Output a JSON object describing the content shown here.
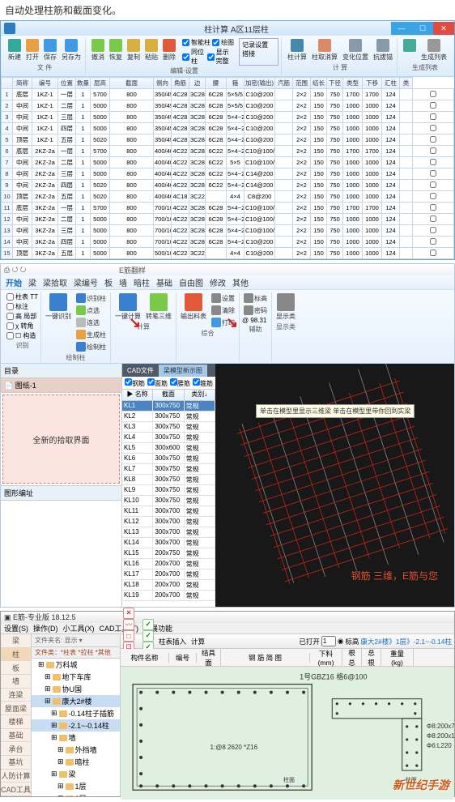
{
  "caption": "自动处理柱筋和截面变化。",
  "win1": {
    "title": "柱计算 A区11层柱",
    "winbtns": {
      "min": "—",
      "max": "☐",
      "close": "✕"
    },
    "ribbon": {
      "groups": [
        {
          "label": "文 件",
          "btns": [
            {
              "lb": "新建",
              "c": "#3a9"
            },
            {
              "lb": "打开",
              "c": "#e8a040"
            },
            {
              "lb": "保存",
              "c": "#4398e6"
            },
            {
              "lb": "另存为",
              "c": "#4398e6"
            }
          ]
        },
        {
          "label": "编辑-设置",
          "btns": [
            {
              "lb": "撤消",
              "c": "#7aca4a"
            },
            {
              "lb": "恢复",
              "c": "#7aca4a"
            },
            {
              "lb": "复制",
              "c": "#d8b040"
            },
            {
              "lb": "粘贴",
              "c": "#d8b040"
            },
            {
              "lb": "删除",
              "c": "#e05a3a"
            }
          ],
          "checks": [
            [
              "智能柱",
              "绘图"
            ],
            [
              "同位柱",
              "显示完整"
            ]
          ],
          "box": "记录设置 搭接"
        },
        {
          "label": "计 算",
          "btns": [
            {
              "lb": "柱计算",
              "c": "#48a"
            },
            {
              "lb": "柱取消算",
              "c": "#d86"
            },
            {
              "lb": "变化位置",
              "c": "#89a"
            },
            {
              "lb": "抗拔锚",
              "c": "#89a"
            }
          ]
        },
        {
          "label": "生成列表",
          "btns": [
            {
              "lb": "",
              "c": "#4a9"
            },
            {
              "lb": "生成列表",
              "c": "#999"
            }
          ]
        }
      ]
    },
    "grid": {
      "headers": [
        "",
        "简称",
        "编号",
        "位置",
        "数量",
        "层高",
        "截面",
        "侧向",
        "角筋",
        "边",
        "腰",
        "箍",
        "加密(输出)",
        "汽筋",
        "范围",
        "结长",
        "下径",
        "类型",
        "下移",
        "汇柱",
        "类"
      ],
      "widths": [
        14,
        24,
        32,
        22,
        18,
        24,
        54,
        22,
        22,
        20,
        26,
        22,
        38,
        22,
        22,
        20,
        20,
        24,
        24,
        22,
        16
      ],
      "rows": [
        [
          "1",
          "底层",
          "1KZ-1",
          "一层",
          "1",
          "5700",
          "800",
          "350/450×100/700",
          "4C28",
          "3C28",
          "6C28",
          "5×5/5",
          "C10@200",
          "",
          "2×2",
          "150",
          "750",
          "1700",
          "1700",
          "124",
          ""
        ],
        [
          "2",
          "中间",
          "1KZ-1",
          "二层",
          "1",
          "5000",
          "800",
          "350/450×100/700",
          "4C28",
          "3C28",
          "6C28",
          "5×5/5",
          "C10@200",
          "",
          "2×2",
          "150",
          "750",
          "1000",
          "1000",
          "124",
          ""
        ],
        [
          "3",
          "中间",
          "1KZ-1",
          "三层",
          "1",
          "5000",
          "800",
          "350/450×100/700",
          "4C28",
          "3C28",
          "6C28",
          "5×4−2/5",
          "C10@200",
          "",
          "2×2",
          "150",
          "750",
          "1000",
          "1000",
          "124",
          ""
        ],
        [
          "4",
          "中间",
          "1KZ-1",
          "四层",
          "1",
          "5000",
          "800",
          "350/450×100/700",
          "4C28",
          "3C28",
          "6C28",
          "5×4−2/5",
          "C10@200",
          "",
          "2×2",
          "150",
          "750",
          "1000",
          "1000",
          "124",
          ""
        ],
        [
          "5",
          "顶层",
          "1KZ-1",
          "五层",
          "1",
          "5020",
          "800",
          "350/450×100/700",
          "4C28",
          "3C28",
          "6C28",
          "5×4−2/5",
          "C10@200",
          "",
          "2×2",
          "150",
          "750",
          "1000",
          "1000",
          "124",
          ""
        ],
        [
          "6",
          "底层",
          "2KZ-2a",
          "一层",
          "1",
          "5700",
          "800",
          "400/400×100/500",
          "4C22",
          "3C28",
          "6C22",
          "5×4−2/5",
          "C10@100/200",
          "",
          "2×2",
          "150",
          "750",
          "1700",
          "1700",
          "124",
          ""
        ],
        [
          "7",
          "中间",
          "2KZ-2a",
          "二层",
          "1",
          "5000",
          "800",
          "400/400×100/500",
          "4C22",
          "3C28",
          "6C22",
          "5×5",
          "C10@100/200",
          "",
          "2×2",
          "150",
          "750",
          "1000",
          "1000",
          "124",
          ""
        ],
        [
          "8",
          "中间",
          "2KZ-2a",
          "三层",
          "1",
          "5000",
          "800",
          "400/400×100/500",
          "4C22",
          "3C28",
          "6C22",
          "5×4−2/5",
          "C14@200",
          "",
          "2×2",
          "150",
          "750",
          "1000",
          "1000",
          "124",
          ""
        ],
        [
          "9",
          "中间",
          "2KZ-2a",
          "四层",
          "1",
          "5020",
          "800",
          "400/400×100/500",
          "4C22",
          "3C28",
          "6C22",
          "5×4−2/5",
          "C14@200",
          "",
          "2×2",
          "150",
          "750",
          "1000",
          "1000",
          "124",
          ""
        ],
        [
          "10",
          "顶层",
          "2KZ-2a",
          "五层",
          "1",
          "5020",
          "800",
          "400/400×100/500",
          "4C18",
          "3C22",
          "",
          "4×4",
          "C8@200",
          "",
          "2×2",
          "150",
          "750",
          "1000",
          "1000",
          "124",
          ""
        ],
        [
          "11",
          "底层",
          "3KZ-2a",
          "一层",
          "1",
          "5700",
          "800",
          "700/100×100/700",
          "4C22",
          "3C28",
          "6C28",
          "5×4−2/5",
          "C10@100/200",
          "",
          "2×2",
          "150",
          "750",
          "1700",
          "1700",
          "124",
          ""
        ],
        [
          "12",
          "中间",
          "3KZ-2a",
          "二层",
          "1",
          "5000",
          "800",
          "700/100×100/700",
          "4C22",
          "3C28",
          "6C28",
          "5×4−2/5",
          "C10@100/200",
          "",
          "2×2",
          "150",
          "750",
          "1000",
          "1000",
          "124",
          ""
        ],
        [
          "13",
          "中间",
          "3KZ-2a",
          "三层",
          "1",
          "5000",
          "800",
          "700/100×100/700",
          "4C22",
          "3C28",
          "6C28",
          "5×4−2/5",
          "C10@100/200",
          "",
          "2×2",
          "150",
          "750",
          "1000",
          "1000",
          "124",
          ""
        ],
        [
          "14",
          "中间",
          "3KZ-2a",
          "四层",
          "1",
          "5000",
          "800",
          "700/100×100/700",
          "4C22",
          "3C28",
          "6C28",
          "5×4−2/5",
          "C10@200",
          "",
          "2×2",
          "150",
          "750",
          "1000",
          "1000",
          "124",
          ""
        ],
        [
          "15",
          "顶层",
          "3KZ-2a",
          "五层",
          "1",
          "5000",
          "800",
          "500/100×100/700",
          "4C22",
          "3C22",
          "",
          "4×4",
          "C10@200",
          "",
          "2×2",
          "150",
          "750",
          "1000",
          "1000",
          "124",
          ""
        ]
      ]
    }
  },
  "win2": {
    "title": "E筋翻样",
    "menus": [
      "开始",
      "梁",
      "梁拾取",
      "梁编号",
      "板",
      "墙",
      "暗柱",
      "基础",
      "自由图",
      "修改",
      "其他"
    ],
    "active_menu": 0,
    "ribbon": {
      "g1": {
        "label": "识别",
        "items": [
          "柱表 TT",
          "标注",
          "高 局部",
          "χ 转角",
          "☐ 构造"
        ]
      },
      "g2": {
        "label": "绘制柱",
        "big": [
          {
            "lb": "一键识别",
            "c": "#3a80d0"
          }
        ],
        "small": [
          {
            "lb": "识别柱",
            "c": "#3a80d0"
          },
          {
            "lb": "点选",
            "c": "#7aca4a"
          },
          {
            "lb": "连选",
            "c": "#bbb"
          },
          {
            "lb": "生成柱",
            "c": "#e8a040"
          },
          {
            "lb": "绘制柱",
            "c": "#3a80d0"
          }
        ]
      },
      "g3": {
        "label": "计算",
        "big": [
          {
            "lb": "一键计算",
            "c": "#3a80d0"
          },
          {
            "lb": "转笔三维",
            "c": "#7aca4a"
          }
        ]
      },
      "g4": {
        "label": "综合",
        "big": [
          {
            "lb": "输出料表",
            "c": "#e05a3a"
          }
        ],
        "small": [
          {
            "lb": "设置",
            "c": "#888"
          },
          {
            "lb": "清除",
            "c": "#888"
          },
          {
            "lb": "打印",
            "c": "#4398e6"
          }
        ]
      },
      "g5": {
        "label": "辅助",
        "small": [
          {
            "lb": "标高",
            "c": "#888"
          },
          {
            "lb": "密码",
            "c": "#888"
          }
        ],
        "val": "@ 98.31"
      },
      "g6": {
        "label": "显示类",
        "big": [
          {
            "lb": "显示类",
            "c": "#888"
          }
        ]
      }
    },
    "left": {
      "hdr": "目录",
      "pink_hdr": "图纸-1",
      "pink": "全新的拾取界面",
      "sub": "图形编址"
    },
    "tabs": [
      "CAD文件",
      "梁模型新示图"
    ],
    "checks": [
      "钢筋",
      "面筋",
      "腰筋",
      "箍筋"
    ],
    "list": {
      "headers": [
        "名称",
        "截面",
        "类别↓"
      ],
      "rows": [
        [
          "KL1",
          "300x750",
          "常规"
        ],
        [
          "KL2",
          "300x750",
          "常规"
        ],
        [
          "KL3",
          "300x750",
          "常规"
        ],
        [
          "KL4",
          "300x750",
          "常规"
        ],
        [
          "KL5",
          "300x600",
          "常规"
        ],
        [
          "KL6",
          "300x750",
          "常规"
        ],
        [
          "KL7",
          "300x750",
          "常规"
        ],
        [
          "KL8",
          "300x750",
          "常规"
        ],
        [
          "KL9",
          "300x750",
          "常规"
        ],
        [
          "KL10",
          "300x750",
          "常规"
        ],
        [
          "KL11",
          "300x700",
          "常规"
        ],
        [
          "KL12",
          "300x700",
          "常规"
        ],
        [
          "KL13",
          "300x700",
          "常规"
        ],
        [
          "KL14",
          "300x700",
          "常规"
        ],
        [
          "KL15",
          "200x750",
          "常规"
        ],
        [
          "KL16",
          "200x700",
          "常规"
        ],
        [
          "KL17",
          "200x700",
          "常规"
        ],
        [
          "KL18",
          "200x700",
          "常规"
        ],
        [
          "KL19",
          "200x700",
          "常规"
        ]
      ]
    },
    "tooltip": "单击在模型里显示三维梁\n单击在模型里带你回到实梁",
    "redtxt": "钢筋 三维，E筋与您"
  },
  "win3": {
    "title": "E筋-专业版 18.12.5",
    "menus": [
      "设置(S)",
      "操作(D)",
      "小工具(X)",
      "CAD工具(T)",
      "扩展功能"
    ],
    "sidebar": [
      "梁",
      "柱",
      "板",
      "墙",
      "连梁",
      "屋面梁",
      "楼梯",
      "基础",
      "承台",
      "基坑",
      "人防计算",
      "CAD工具"
    ],
    "sidebar_sel": 1,
    "tree": {
      "hdr": "文件夹名",
      "filter": "显示",
      "hdr2": "文件类：*柱表 *拉柱 *其他",
      "nodes": [
        {
          "lb": "万科城",
          "d": 0
        },
        {
          "lb": "地下车库",
          "d": 1
        },
        {
          "lb": "协U国",
          "d": 1
        },
        {
          "lb": "康大2#楼",
          "d": 1,
          "sel": true
        },
        {
          "lb": "-0.14柱子插筋",
          "d": 2
        },
        {
          "lb": "-2.1~-0.14柱",
          "d": 2,
          "sel2": true
        },
        {
          "lb": "墙",
          "d": 2
        },
        {
          "lb": "外挡墙",
          "d": 3
        },
        {
          "lb": "暗柱",
          "d": 3
        },
        {
          "lb": "梁",
          "d": 2
        },
        {
          "lb": "1层",
          "d": 3
        },
        {
          "lb": "2层",
          "d": 3
        },
        {
          "lb": "基础",
          "d": 2
        },
        {
          "lb": "康大售楼处",
          "d": 1
        }
      ]
    },
    "toolbar": {
      "left": [
        "✕",
        "〰",
        "□",
        "⊡",
        "=",
        "▥"
      ],
      "mid": [
        "✓",
        "✓",
        "✓",
        "记"
      ],
      "labels": [
        "柱表插入",
        "计算"
      ],
      "right": {
        "lbl1": "已打开",
        "val1": "1",
        "lbl2": "标高",
        "path": "康大2#楼》1层》-2.1~-0.14柱"
      }
    },
    "hdr_cells": [
      "构件名称",
      "编号",
      "结具面",
      "钢 筋 简 图",
      "下料(mm)",
      "根总",
      "总根",
      "重量(kg)"
    ],
    "drawing": {
      "title": "1号GBZ16  格6@100",
      "dim": "1:@8   2620  *Z16",
      "notes": [
        "Φ8:200x780",
        "Φ8:200x1330",
        "Φ6:L220"
      ],
      "dtxt": "柱面"
    },
    "watermark": "新世纪手游"
  }
}
